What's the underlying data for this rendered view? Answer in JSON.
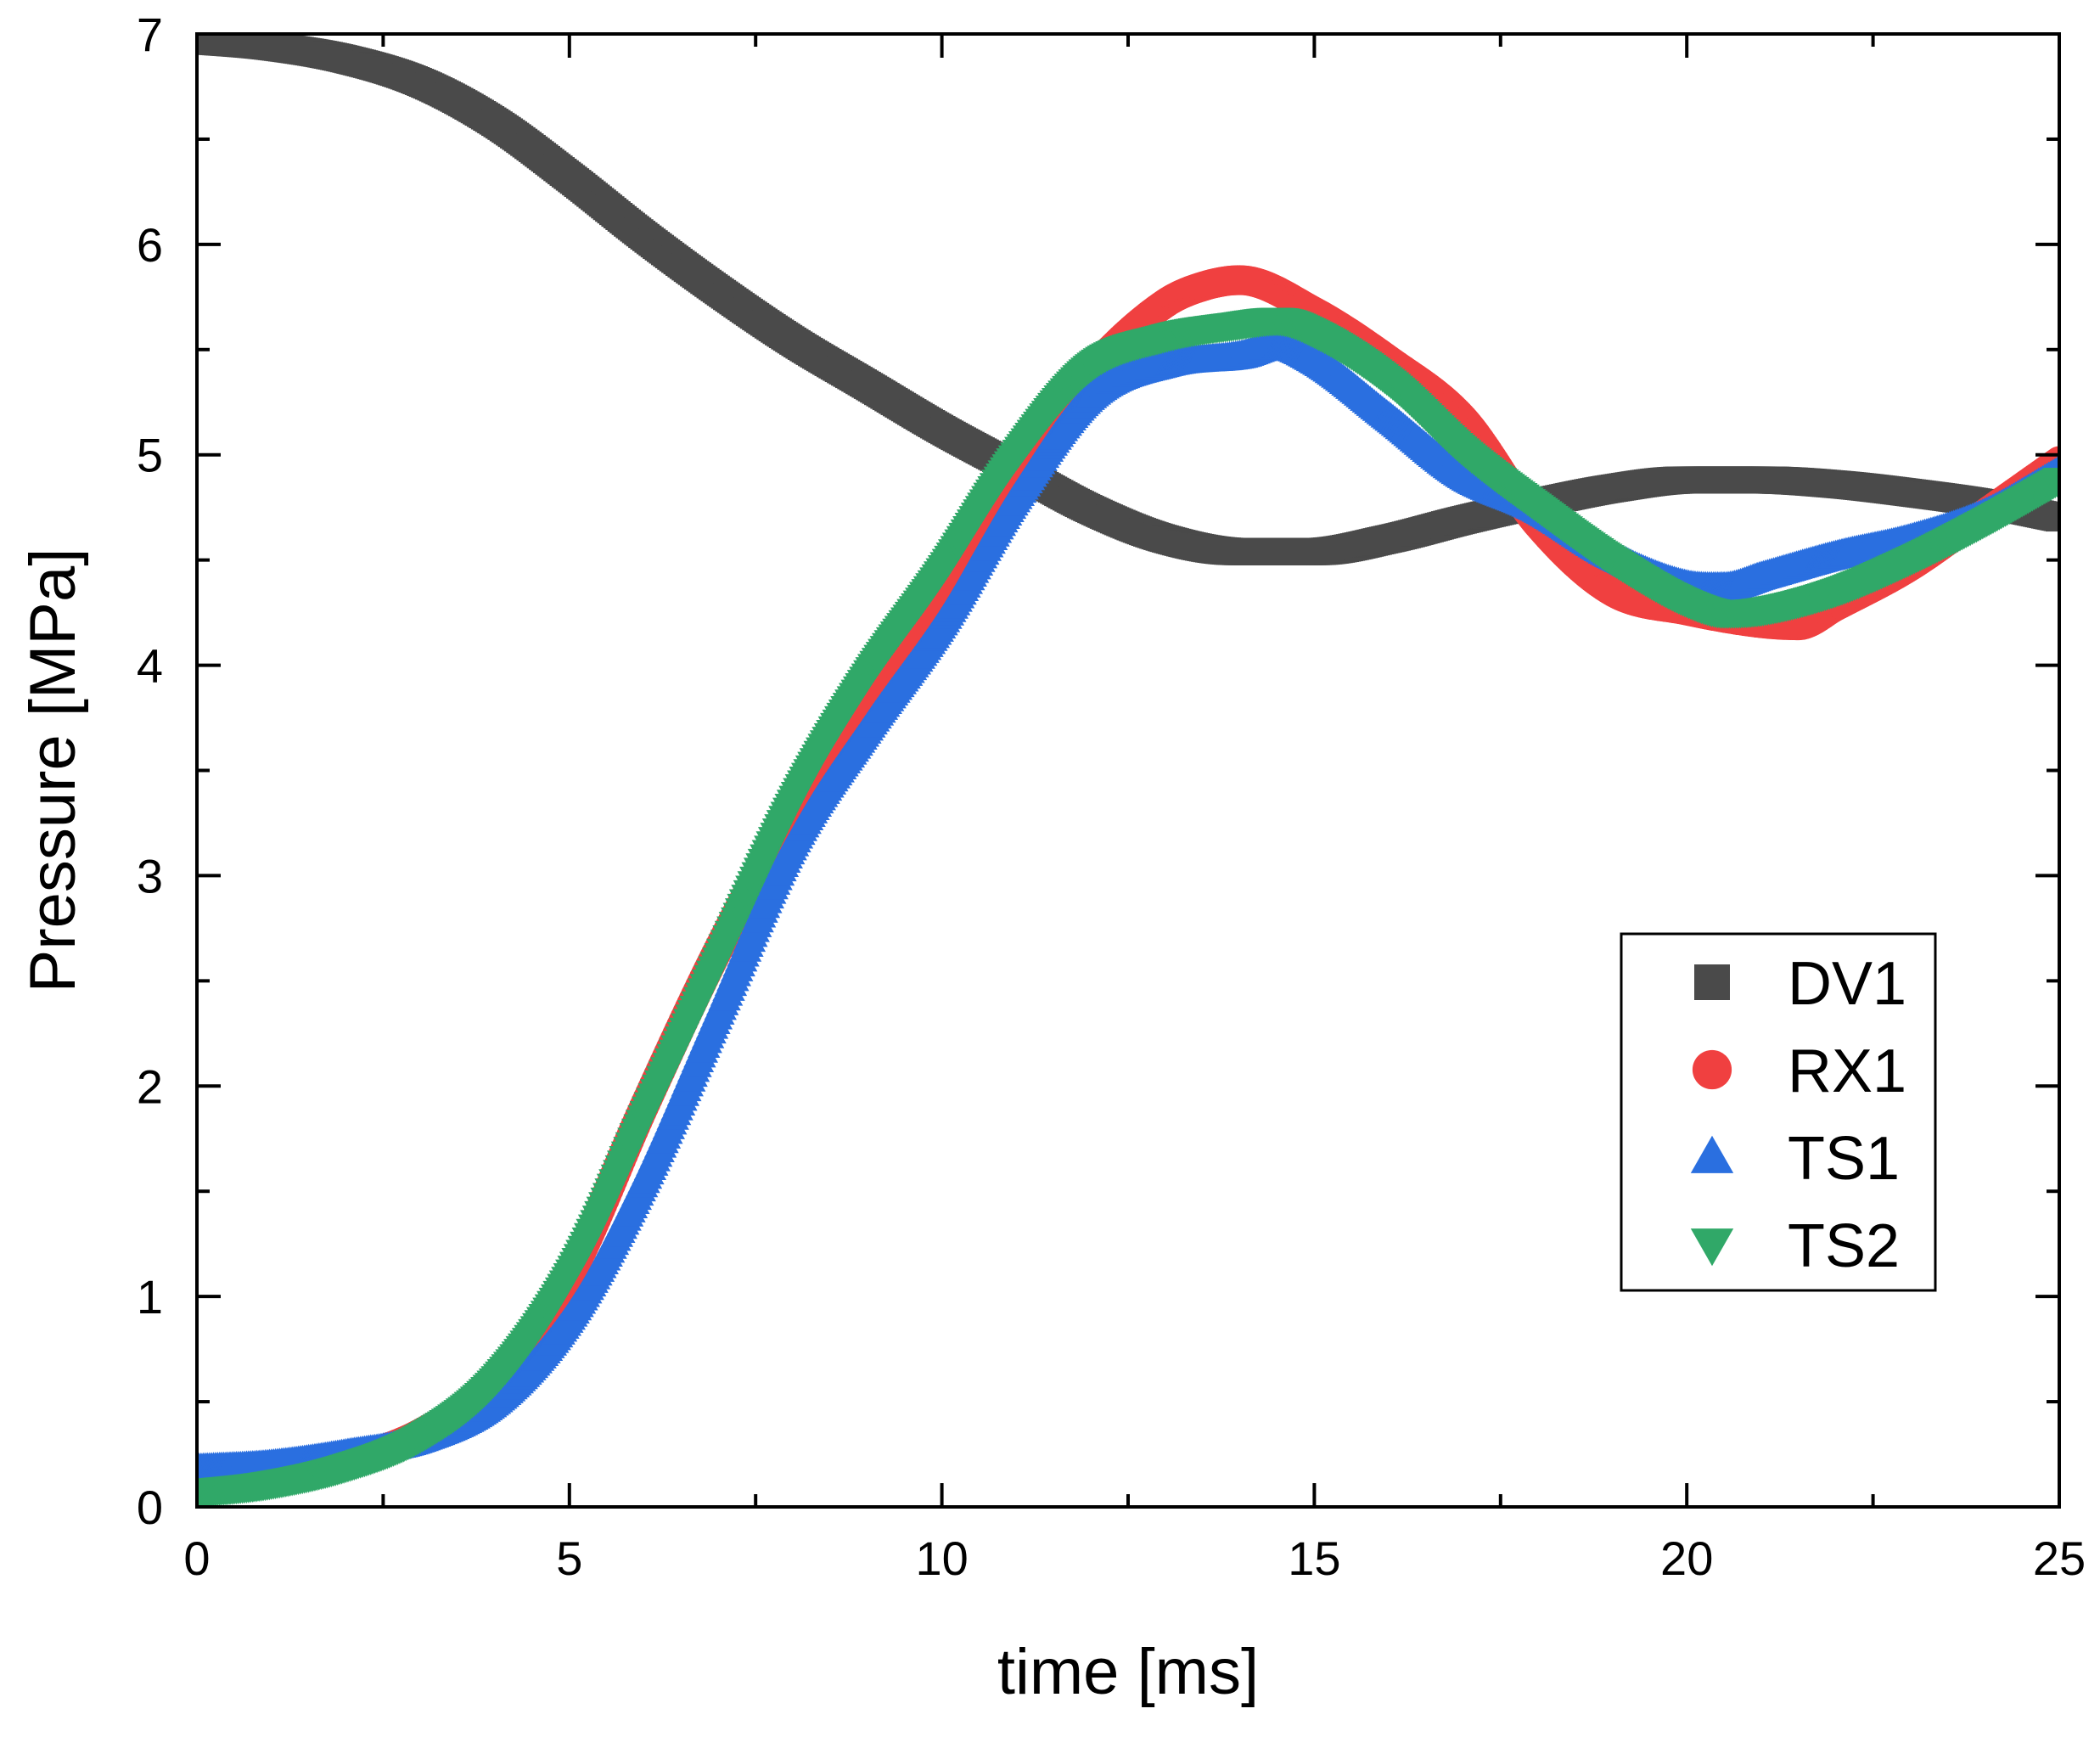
{
  "chart_data": {
    "type": "scatter",
    "xlabel": "time [ms]",
    "ylabel": "Pressure [MPa]",
    "xlim": [
      0,
      25
    ],
    "ylim": [
      0,
      7
    ],
    "xticks": [
      0,
      5,
      10,
      15,
      20,
      25
    ],
    "yticks": [
      0,
      1,
      2,
      3,
      4,
      5,
      6,
      7
    ],
    "grid": false,
    "legend_position": "right",
    "series": [
      {
        "name": "DV1",
        "marker": "square",
        "color": "#4a4a4a",
        "x": [
          0,
          1,
          2,
          3,
          4,
          5,
          6,
          7,
          8,
          9,
          10,
          11,
          12,
          13,
          14,
          15,
          16,
          17,
          18,
          19,
          20,
          21,
          22,
          23,
          24,
          25
        ],
        "y": [
          6.97,
          6.94,
          6.88,
          6.77,
          6.58,
          6.32,
          6.04,
          5.78,
          5.54,
          5.33,
          5.12,
          4.93,
          4.74,
          4.6,
          4.54,
          4.54,
          4.6,
          4.69,
          4.77,
          4.84,
          4.88,
          4.88,
          4.86,
          4.82,
          4.77,
          4.7
        ]
      },
      {
        "name": "RX1",
        "marker": "circle",
        "color": "#f04040",
        "x": [
          0,
          1,
          2,
          3,
          4,
          5,
          6,
          7,
          8,
          9,
          10,
          11,
          12,
          13,
          13.5,
          14,
          15,
          16,
          17,
          18,
          19,
          20,
          21,
          21.5,
          22,
          23,
          24,
          25
        ],
        "y": [
          0.1,
          0.14,
          0.22,
          0.35,
          0.6,
          1.1,
          1.9,
          2.65,
          3.3,
          3.82,
          4.33,
          4.93,
          5.4,
          5.72,
          5.8,
          5.83,
          5.68,
          5.45,
          5.17,
          4.67,
          4.35,
          4.26,
          4.2,
          4.19,
          4.28,
          4.47,
          4.72,
          4.97
        ]
      },
      {
        "name": "TS1",
        "marker": "triangle-up",
        "color": "#2a6fe0",
        "x": [
          0,
          1,
          2,
          3,
          4,
          5,
          6,
          7,
          8,
          9,
          10,
          11,
          12,
          13,
          14,
          14.5,
          15,
          16,
          17,
          18,
          19,
          20,
          20.5,
          21,
          22,
          23,
          24,
          25
        ],
        "y": [
          0.18,
          0.2,
          0.25,
          0.32,
          0.5,
          0.9,
          1.55,
          2.35,
          3.15,
          3.7,
          4.2,
          4.8,
          5.28,
          5.43,
          5.47,
          5.52,
          5.45,
          5.18,
          4.9,
          4.74,
          4.52,
          4.38,
          4.37,
          4.42,
          4.52,
          4.6,
          4.72,
          4.92
        ]
      },
      {
        "name": "TS2",
        "marker": "triangle-down",
        "color": "#30a868",
        "x": [
          0,
          1,
          2,
          3,
          4,
          5,
          6,
          7,
          8,
          9,
          10,
          11,
          12,
          13,
          14,
          14.5,
          15,
          16,
          17,
          18,
          19,
          20,
          20.5,
          21,
          22,
          23,
          24,
          25
        ],
        "y": [
          0.07,
          0.11,
          0.19,
          0.33,
          0.6,
          1.1,
          1.85,
          2.6,
          3.35,
          3.95,
          4.45,
          5.0,
          5.42,
          5.56,
          5.62,
          5.64,
          5.58,
          5.35,
          5.02,
          4.75,
          4.5,
          4.3,
          4.25,
          4.26,
          4.35,
          4.5,
          4.68,
          4.88
        ]
      }
    ]
  }
}
